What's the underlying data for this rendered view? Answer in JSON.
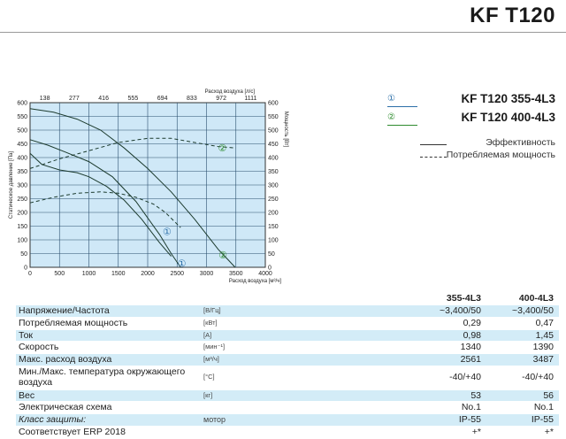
{
  "header": {
    "title": "KF T120"
  },
  "legend": {
    "series": [
      {
        "marker": "①",
        "name": "KF T120 355-4L3"
      },
      {
        "marker": "②",
        "name": "KF T120 400-4L3"
      }
    ],
    "line_styles": [
      {
        "style": "solid",
        "label": "Эффективность"
      },
      {
        "style": "dashed",
        "label": "Потребляемая мощность"
      }
    ]
  },
  "chart_data": {
    "type": "line",
    "ylabel_left": "Статическое давление [Па]",
    "ylabel_right": "Мощность [Вт]",
    "xlabel_bottom": "Расход воздуха [м³/ч]",
    "xlabel_top": "Расход воздуха [л/с]",
    "xlim": [
      0,
      4000
    ],
    "ylim": [
      0,
      600
    ],
    "y2lim": [
      0,
      600
    ],
    "x_ticks": [
      "0",
      "500",
      "1000",
      "1500",
      "2000",
      "2500",
      "3000",
      "3500",
      "4000"
    ],
    "x_top_ticks": [
      "138",
      "277",
      "416",
      "555",
      "694",
      "833",
      "972",
      "1111"
    ],
    "y_ticks": [
      "0",
      "50",
      "100",
      "150",
      "200",
      "250",
      "300",
      "350",
      "400",
      "450",
      "500",
      "550",
      "600"
    ],
    "y2_ticks": [
      "0",
      "50",
      "100",
      "150",
      "200",
      "250",
      "300",
      "350",
      "400",
      "450",
      "500",
      "550",
      "600"
    ],
    "grid": true,
    "background": "#cfe8f7",
    "series": [
      {
        "name": "KF T120 355-4L3",
        "marker": "①",
        "kind": "pressure",
        "style": "solid",
        "x": [
          0,
          300,
          600,
          1000,
          1400,
          1800,
          2200,
          2400,
          2560
        ],
        "y": [
          465,
          445,
          420,
          385,
          330,
          240,
          120,
          50,
          0
        ]
      },
      {
        "name": "KF T120 400-4L3",
        "marker": "②",
        "kind": "pressure",
        "style": "solid",
        "x": [
          0,
          400,
          800,
          1200,
          1600,
          2000,
          2400,
          2800,
          3200,
          3487
        ],
        "y": [
          578,
          565,
          540,
          500,
          435,
          360,
          275,
          175,
          65,
          0
        ]
      },
      {
        "name": "KF T120 355-4L3",
        "marker": "①",
        "kind": "power",
        "style": "dashed",
        "x": [
          0,
          400,
          800,
          1200,
          1500,
          1800,
          2100,
          2300,
          2560
        ],
        "y": [
          235,
          255,
          270,
          275,
          270,
          255,
          230,
          200,
          145
        ]
      },
      {
        "name": "KF T120 400-4L3",
        "marker": "②",
        "kind": "power",
        "style": "dashed",
        "x": [
          0,
          500,
          1000,
          1500,
          2000,
          2400,
          2800,
          3200,
          3500
        ],
        "y": [
          360,
          395,
          425,
          455,
          470,
          470,
          455,
          440,
          435
        ]
      },
      {
        "name": "KF T120 355-4L3",
        "marker": "①",
        "kind": "efficiency",
        "style": "solid",
        "x": [
          0,
          200,
          500,
          800,
          1000,
          1300,
          1600,
          1900,
          2200,
          2400
        ],
        "y": [
          415,
          375,
          355,
          345,
          330,
          295,
          245,
          175,
          90,
          40
        ]
      }
    ],
    "series_labels": [
      {
        "marker": "①",
        "x": 2330,
        "y": 130
      },
      {
        "marker": "①",
        "x": 2580,
        "y": 15
      },
      {
        "marker": "②",
        "x": 3270,
        "y": 435
      },
      {
        "marker": "②",
        "x": 3280,
        "y": 45
      }
    ]
  },
  "specs": {
    "columns": [
      "355-4L3",
      "400-4L3"
    ],
    "rows": [
      {
        "label": "Напряжение/Частота",
        "unit": "[В/Гц]",
        "v1": "~3,400/50",
        "v2": "~3,400/50"
      },
      {
        "label": "Потребляемая мощность",
        "unit": "[кВт]",
        "v1": "0,29",
        "v2": "0,47"
      },
      {
        "label": "Ток",
        "unit": "[А]",
        "v1": "0,98",
        "v2": "1,45"
      },
      {
        "label": "Скорость",
        "unit": "[мин⁻¹]",
        "v1": "1340",
        "v2": "1390"
      },
      {
        "label": "Макс. расход воздуха",
        "unit": "[м³/ч]",
        "v1": "2561",
        "v2": "3487"
      },
      {
        "label": "Мин./Макс. температура окружающего воздуха",
        "unit": "[°C]",
        "v1": "-40/+40",
        "v2": "-40/+40"
      },
      {
        "label": "Вес",
        "unit": "[кг]",
        "v1": "53",
        "v2": "56"
      },
      {
        "label": "Электрическая схема",
        "unit": "",
        "v1": "No.1",
        "v2": "No.1"
      },
      {
        "label": "Класс защиты:",
        "unit": "мотор",
        "v1": "IP-55",
        "v2": "IP-55"
      },
      {
        "label": "Соответствует ERP 2018",
        "unit": "",
        "v1": "+*",
        "v2": "+*"
      }
    ]
  }
}
